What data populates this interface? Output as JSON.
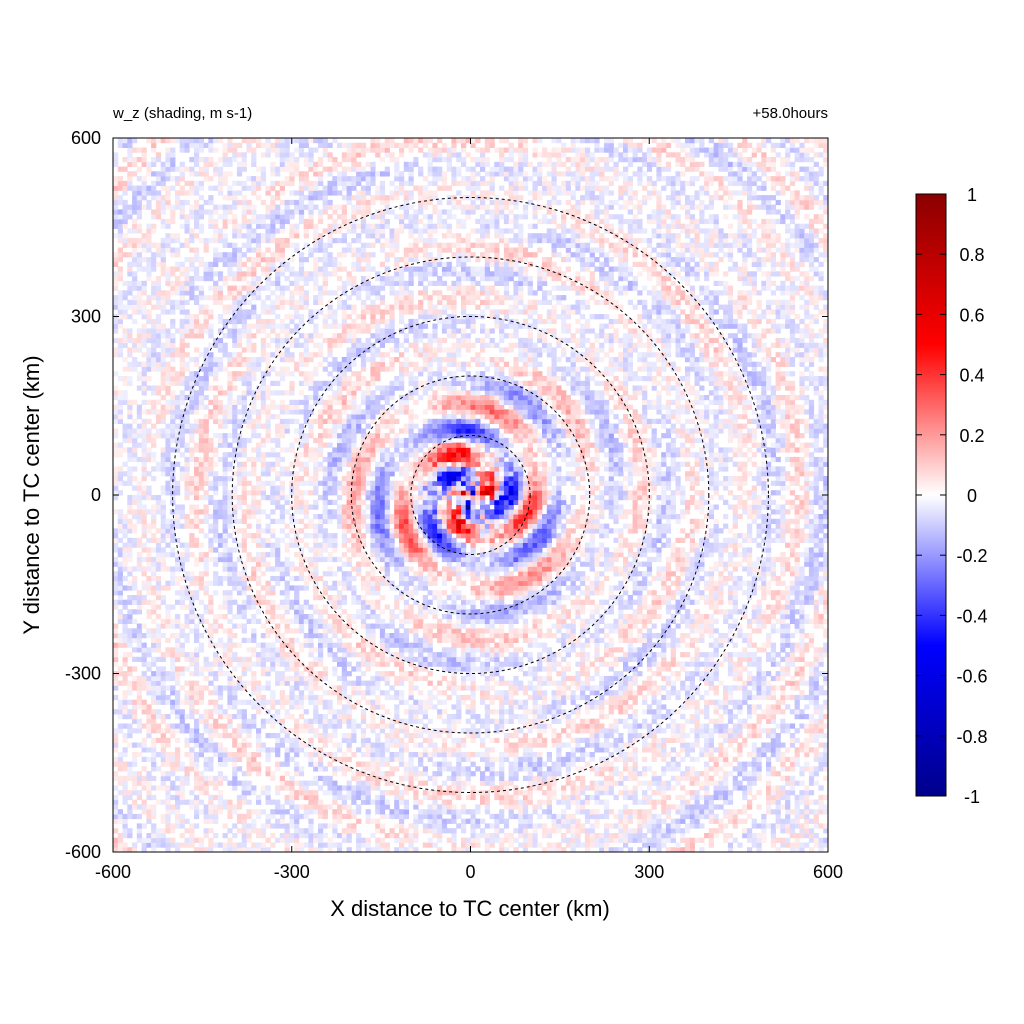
{
  "chart_data": {
    "type": "heatmap",
    "title_left": "w_z (shading, m s-1)",
    "title_right": "+58.0hours",
    "xlabel": "X distance to TC center (km)",
    "ylabel": "Y distance to TC center (km)",
    "xlim": [
      -600,
      600
    ],
    "ylim": [
      -600,
      600
    ],
    "xticks": [
      -600,
      -300,
      0,
      300,
      600
    ],
    "yticks": [
      -600,
      -300,
      0,
      300,
      600
    ],
    "color_range": [
      -1,
      1
    ],
    "colorbar_ticks": [
      1,
      0.8,
      0.6,
      0.4,
      0.2,
      0,
      -0.2,
      -0.4,
      -0.6,
      -0.8,
      -1
    ],
    "colorbar_tick_labels": [
      "1",
      "0.8",
      "0.6",
      "0.4",
      "0.2",
      "0",
      "-0.2",
      "-0.4",
      "-0.6",
      "-0.8",
      "-1"
    ],
    "colormap": [
      "#00008b",
      "#0000ff",
      "#ffffff",
      "#ff0000",
      "#8b0000"
    ],
    "range_rings_km": [
      100,
      200,
      300,
      400,
      500
    ],
    "ring_style": "dashed",
    "field_description_only_for_render": null
  }
}
